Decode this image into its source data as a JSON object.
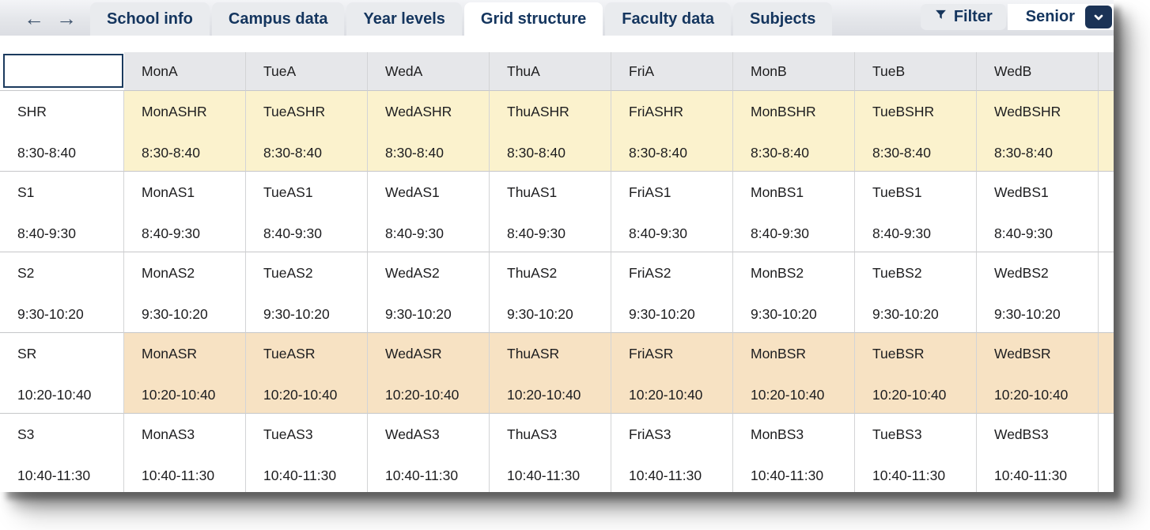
{
  "topbar": {
    "back_icon": "←",
    "forward_icon": "→",
    "tabs": [
      {
        "label": "School info",
        "active": false
      },
      {
        "label": "Campus data",
        "active": false
      },
      {
        "label": "Year levels",
        "active": false
      },
      {
        "label": "Grid structure",
        "active": true
      },
      {
        "label": "Faculty data",
        "active": false
      },
      {
        "label": "Subjects",
        "active": false
      }
    ],
    "filter_label": "Filter",
    "level_selector_value": "Senior"
  },
  "grid": {
    "corner_cell": "",
    "columns": [
      "MonA",
      "TueA",
      "WedA",
      "ThuA",
      "FriA",
      "MonB",
      "TueB",
      "WedB"
    ],
    "clipped_extra_column": true,
    "rows": [
      {
        "period": "SHR",
        "time": "8:30-8:40",
        "highlight": "yellow",
        "cells": [
          "MonASHR",
          "TueASHR",
          "WedASHR",
          "ThuASHR",
          "FriASHR",
          "MonBSHR",
          "TueBSHR",
          "WedBSHR"
        ]
      },
      {
        "period": "S1",
        "time": "8:40-9:30",
        "highlight": "none",
        "cells": [
          "MonAS1",
          "TueAS1",
          "WedAS1",
          "ThuAS1",
          "FriAS1",
          "MonBS1",
          "TueBS1",
          "WedBS1"
        ]
      },
      {
        "period": "S2",
        "time": "9:30-10:20",
        "highlight": "none",
        "cells": [
          "MonAS2",
          "TueAS2",
          "WedAS2",
          "ThuAS2",
          "FriAS2",
          "MonBS2",
          "TueBS2",
          "WedBS2"
        ]
      },
      {
        "period": "SR",
        "time": "10:20-10:40",
        "highlight": "peach",
        "cells": [
          "MonASR",
          "TueASR",
          "WedASR",
          "ThuASR",
          "FriASR",
          "MonBSR",
          "TueBSR",
          "WedBSR"
        ]
      },
      {
        "period": "S3",
        "time": "10:40-11:30",
        "highlight": "none",
        "cells": [
          "MonAS3",
          "TueAS3",
          "WedAS3",
          "ThuAS3",
          "FriAS3",
          "MonBS3",
          "TueBS3",
          "WedBS3"
        ]
      }
    ]
  },
  "colors": {
    "accent_navy": "#17365c",
    "highlight_yellow": "#fbf2cd",
    "highlight_peach": "#f7e2c3",
    "header_gray": "#e6e7ea",
    "tab_gray": "#e9ebee"
  }
}
